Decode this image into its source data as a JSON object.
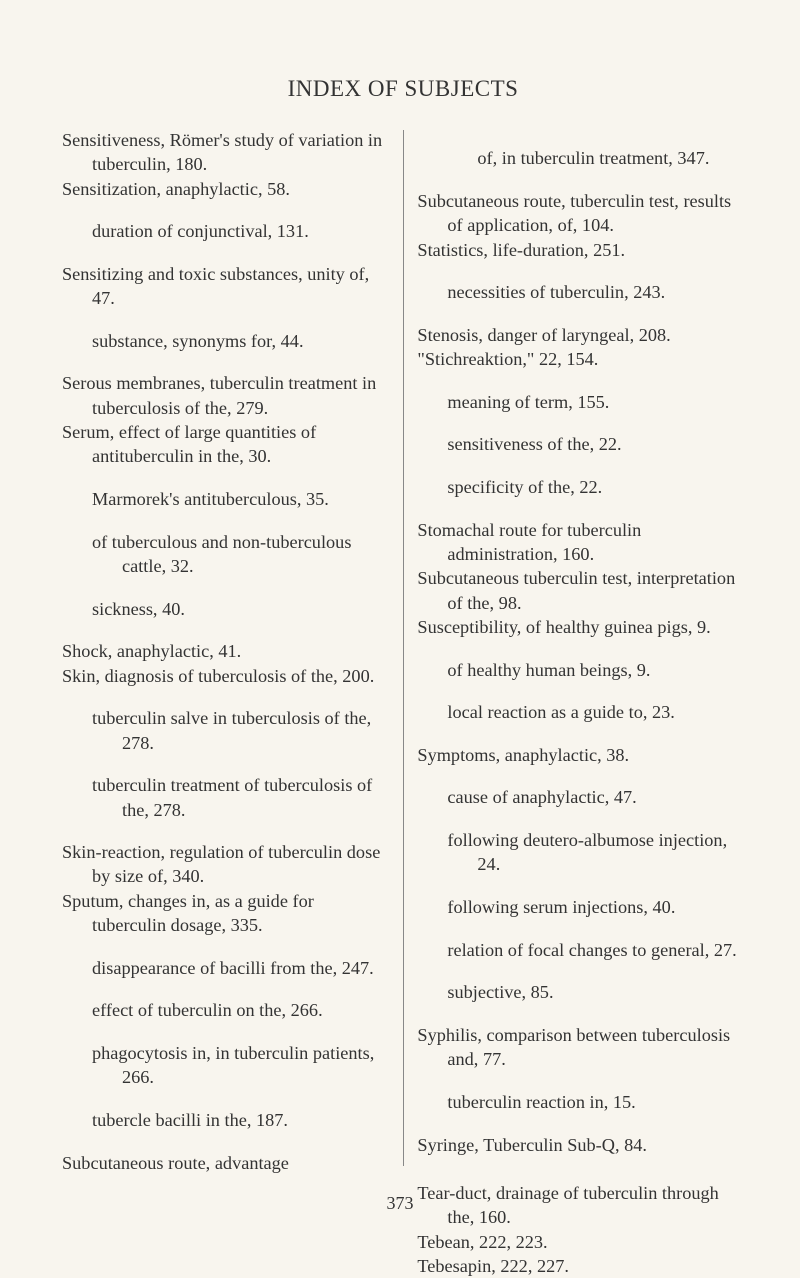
{
  "title": "INDEX OF SUBJECTS",
  "page_number": "373",
  "left_column": [
    {
      "cls": "entry",
      "text": "Sensitiveness, Römer's study of variation in tuberculin, 180."
    },
    {
      "cls": "entry",
      "text": "Sensitization, anaphylactic, 58."
    },
    {
      "cls": "sub",
      "text": "duration of conjunctival, 131."
    },
    {
      "cls": "entry",
      "text": "Sensitizing and toxic substances, unity of, 47."
    },
    {
      "cls": "sub",
      "text": "substance, synonyms for, 44."
    },
    {
      "cls": "entry",
      "text": "Serous membranes, tuberculin treatment in tuberculosis of the, 279."
    },
    {
      "cls": "entry",
      "text": "Serum, effect of large quantities of antituberculin in the, 30."
    },
    {
      "cls": "sub",
      "text": "Marmorek's antituberculous, 35."
    },
    {
      "cls": "sub",
      "text": "of tuberculous and non-tuberculous cattle, 32."
    },
    {
      "cls": "sub",
      "text": "sickness, 40."
    },
    {
      "cls": "entry",
      "text": "Shock, anaphylactic, 41."
    },
    {
      "cls": "entry",
      "text": "Skin, diagnosis of tuberculosis of the, 200."
    },
    {
      "cls": "sub",
      "text": "tuberculin salve in tuberculosis of the, 278."
    },
    {
      "cls": "sub",
      "text": "tuberculin treatment of tuberculosis of the, 278."
    },
    {
      "cls": "entry",
      "text": "Skin-reaction, regulation of tuberculin dose by size of, 340."
    },
    {
      "cls": "entry",
      "text": "Sputum, changes in, as a guide for tuberculin dosage, 335."
    },
    {
      "cls": "sub",
      "text": "disappearance of bacilli from the, 247."
    },
    {
      "cls": "sub",
      "text": "effect of tuberculin on the, 266."
    },
    {
      "cls": "sub",
      "text": "phagocytosis in, in tuberculin patients, 266."
    },
    {
      "cls": "sub",
      "text": "tubercle bacilli in the, 187."
    },
    {
      "cls": "entry",
      "text": "Subcutaneous route, advantage"
    }
  ],
  "right_column": [
    {
      "cls": "deep",
      "text": "of, in tuberculin treatment, 347."
    },
    {
      "cls": "entry",
      "text": "Subcutaneous route, tuberculin test, results of application, of, 104."
    },
    {
      "cls": "entry",
      "text": "Statistics, life-duration, 251."
    },
    {
      "cls": "sub",
      "text": "necessities of tuberculin, 243."
    },
    {
      "cls": "entry",
      "text": "Stenosis, danger of laryngeal, 208."
    },
    {
      "cls": "entry",
      "text": "\"Stichreaktion,\" 22, 154."
    },
    {
      "cls": "sub",
      "text": "meaning of term, 155."
    },
    {
      "cls": "sub",
      "text": "sensitiveness of the, 22."
    },
    {
      "cls": "sub",
      "text": "specificity of the, 22."
    },
    {
      "cls": "entry",
      "text": "Stomachal route for tuberculin administration, 160."
    },
    {
      "cls": "entry",
      "text": "Subcutaneous tuberculin test, interpretation of the, 98."
    },
    {
      "cls": "entry",
      "text": "Susceptibility, of healthy guinea pigs, 9."
    },
    {
      "cls": "sub",
      "text": "of healthy human beings, 9."
    },
    {
      "cls": "sub",
      "text": "local reaction as a guide to, 23."
    },
    {
      "cls": "entry",
      "text": "Symptoms, anaphylactic, 38."
    },
    {
      "cls": "sub",
      "text": "cause of anaphylactic, 47."
    },
    {
      "cls": "sub",
      "text": "following deutero-albumose injection, 24."
    },
    {
      "cls": "sub",
      "text": "following serum injections, 40."
    },
    {
      "cls": "sub",
      "text": "relation of focal changes to general, 27."
    },
    {
      "cls": "sub",
      "text": "subjective, 85."
    },
    {
      "cls": "entry",
      "text": "Syphilis, comparison between tuberculosis and, 77."
    },
    {
      "cls": "sub",
      "text": "tuberculin reaction in, 15."
    },
    {
      "cls": "entry",
      "text": "Syringe, Tuberculin Sub-Q, 84."
    },
    {
      "cls": "entry",
      "text": " "
    },
    {
      "cls": "entry",
      "text": "Tear-duct, drainage of tuberculin through the, 160."
    },
    {
      "cls": "entry",
      "text": "Tebean, 222, 223."
    },
    {
      "cls": "entry",
      "text": "Tebesapin, 222, 227."
    }
  ]
}
